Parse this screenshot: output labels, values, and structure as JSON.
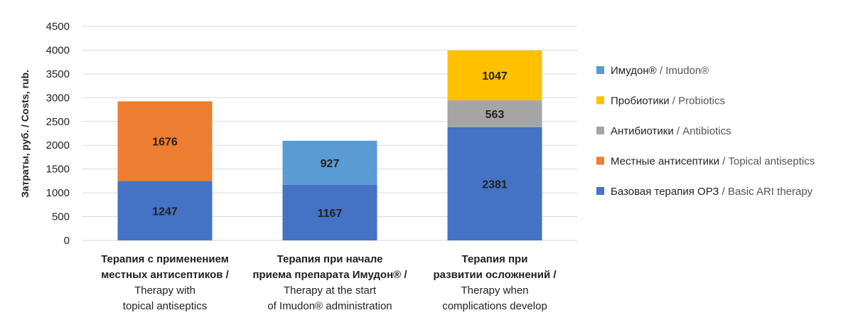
{
  "chart_data": {
    "type": "bar",
    "stacked": true,
    "ylabel": "Затраты, руб. / Costs, rub.",
    "ylim": [
      0,
      4500
    ],
    "yticks": [
      0,
      500,
      1000,
      1500,
      2000,
      2500,
      3000,
      3500,
      4000,
      4500
    ],
    "grid": true,
    "legend_position": "right",
    "categories": [
      {
        "lines": [
          {
            "text": "Терапия с применением",
            "weight": "bold"
          },
          {
            "text": "местных антисептиков /",
            "weight": "bold"
          },
          {
            "text": "Therapy with",
            "weight": "normal"
          },
          {
            "text": "topical antiseptics",
            "weight": "normal"
          }
        ]
      },
      {
        "lines": [
          {
            "text": "Терапия при начале",
            "weight": "bold"
          },
          {
            "text": "приема препарата Имудон® /",
            "weight": "bold"
          },
          {
            "text": "Therapy at the start",
            "weight": "normal"
          },
          {
            "text": "of Imudon® administration",
            "weight": "normal"
          }
        ]
      },
      {
        "lines": [
          {
            "text": "Терапия при",
            "weight": "bold"
          },
          {
            "text": "развитии осложнений /",
            "weight": "bold"
          },
          {
            "text": "Therapy when",
            "weight": "normal"
          },
          {
            "text": "complications develop",
            "weight": "normal"
          }
        ]
      }
    ],
    "series": [
      {
        "name_ru": "Базовая терапия ОРЗ",
        "name_en": "Basic ARI therapy",
        "color": "#4472c4",
        "values": [
          1247,
          1167,
          2381
        ]
      },
      {
        "name_ru": "Местные антисептики",
        "name_en": "Topical antiseptics",
        "color": "#ed7d31",
        "values": [
          1676,
          null,
          null
        ]
      },
      {
        "name_ru": "Антибиотики",
        "name_en": "Antibiotics",
        "color": "#a5a5a5",
        "values": [
          null,
          null,
          563
        ]
      },
      {
        "name_ru": "Пробиотики",
        "name_en": "Probiotics",
        "color": "#ffc000",
        "values": [
          null,
          null,
          1047
        ]
      },
      {
        "name_ru": "Имудон®",
        "name_en": "Imudon®",
        "color": "#5b9bd5",
        "values": [
          null,
          927,
          null
        ]
      }
    ],
    "legend_order": [
      4,
      3,
      2,
      1,
      0
    ]
  }
}
